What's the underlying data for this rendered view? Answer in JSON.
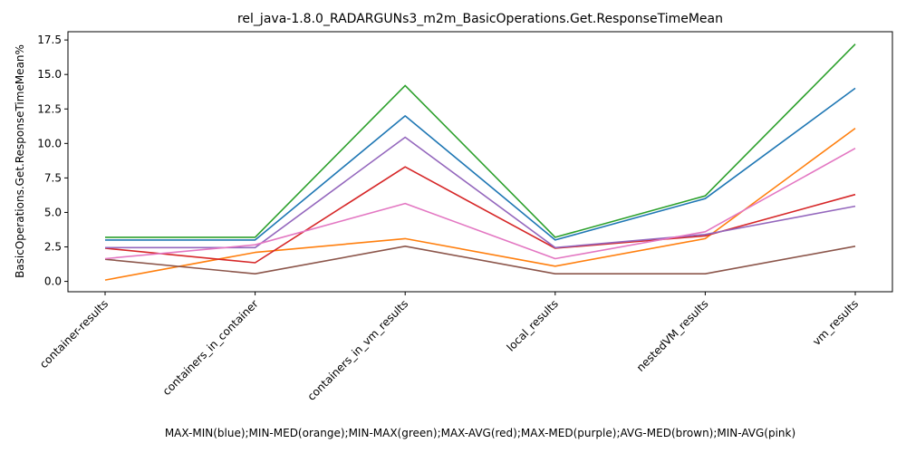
{
  "chart_data": {
    "type": "line",
    "title": "rel_java-1.8.0_RADARGUNs3_m2m_BasicOperations.Get.ResponseTimeMean",
    "xlabel": "MAX-MIN(blue);MIN-MED(orange);MIN-MAX(green);MAX-AVG(red);MAX-MED(purple);AVG-MED(brown);MIN-AVG(pink)",
    "ylabel": "BasicOperations.Get.ResponseTimeMean%",
    "categories": [
      "container-results",
      "containers_in_container",
      "containers_in_vm_results",
      "local_results",
      "nestedVM_results",
      "vm_results"
    ],
    "ylim": [
      -0.75,
      18.1
    ],
    "yticks": [
      0.0,
      2.5,
      5.0,
      7.5,
      10.0,
      12.5,
      15.0,
      17.5
    ],
    "ytick_labels": [
      "0.0",
      "2.5",
      "5.0",
      "7.5",
      "10.0",
      "12.5",
      "15.0",
      "17.5"
    ],
    "grid": false,
    "series": [
      {
        "color": "#1f77b4",
        "values": [
          3.0,
          3.0,
          12.0,
          3.0,
          6.0,
          14.0
        ]
      },
      {
        "color": "#ff7f0e",
        "values": [
          0.1,
          2.1,
          3.1,
          1.1,
          3.1,
          11.1
        ]
      },
      {
        "color": "#2ca02c",
        "values": [
          3.2,
          3.2,
          14.2,
          3.2,
          6.2,
          17.2
        ]
      },
      {
        "color": "#d62728",
        "values": [
          2.4,
          1.35,
          8.3,
          2.4,
          3.3,
          6.3
        ]
      },
      {
        "color": "#9467bd",
        "values": [
          2.45,
          2.45,
          10.45,
          2.45,
          3.4,
          5.45
        ]
      },
      {
        "color": "#8c564b",
        "values": [
          1.6,
          0.55,
          2.55,
          0.55,
          0.55,
          2.55
        ]
      },
      {
        "color": "#e377c2",
        "values": [
          1.65,
          2.65,
          5.65,
          1.65,
          3.6,
          9.65
        ]
      }
    ]
  }
}
